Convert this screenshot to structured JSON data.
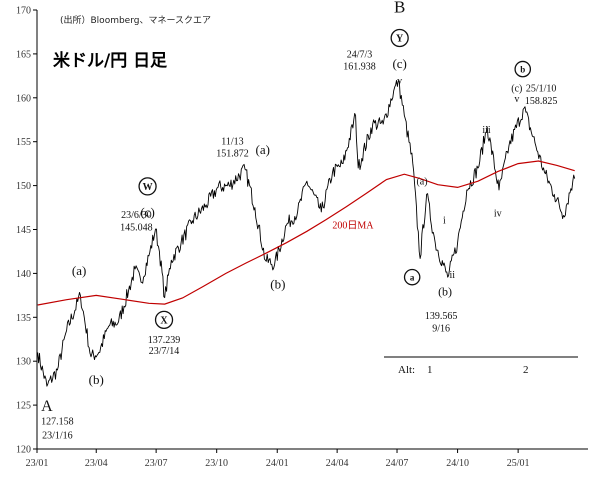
{
  "chart_data": {
    "type": "line",
    "source": "(出所）Bloomberg、マネースクエア",
    "title": "米ドル/円 日足",
    "x_ticks": [
      "23/01",
      "23/04",
      "23/07",
      "23/10",
      "24/01",
      "24/04",
      "24/07",
      "24/10",
      "25/01"
    ],
    "ylim": [
      120,
      170
    ],
    "y_ticks": [
      120,
      125,
      130,
      135,
      140,
      145,
      150,
      155,
      160,
      165,
      170
    ],
    "grid": false,
    "series": [
      {
        "name": "",
        "color": "#000000",
        "points": [
          [
            "2023-01-02",
            131.0
          ],
          [
            "2023-01-16",
            127.158
          ],
          [
            "2023-02-01",
            129.0
          ],
          [
            "2023-02-15",
            133.5
          ],
          [
            "2023-03-08",
            137.5
          ],
          [
            "2023-03-24",
            130.5
          ],
          [
            "2023-04-05",
            131.0
          ],
          [
            "2023-04-20",
            134.0
          ],
          [
            "2023-05-05",
            134.5
          ],
          [
            "2023-05-20",
            138.0
          ],
          [
            "2023-05-30",
            140.5
          ],
          [
            "2023-06-08",
            139.0
          ],
          [
            "2023-06-20",
            142.0
          ],
          [
            "2023-06-30",
            145.048
          ],
          [
            "2023-07-06",
            142.5
          ],
          [
            "2023-07-14",
            137.239
          ],
          [
            "2023-07-24",
            141.5
          ],
          [
            "2023-08-08",
            143.5
          ],
          [
            "2023-08-25",
            146.0
          ],
          [
            "2023-09-15",
            147.8
          ],
          [
            "2023-10-03",
            149.8
          ],
          [
            "2023-10-20",
            150.0
          ],
          [
            "2023-11-13",
            151.872
          ],
          [
            "2023-11-28",
            147.5
          ],
          [
            "2023-12-14",
            141.5
          ],
          [
            "2023-12-28",
            141.0
          ],
          [
            "2024-01-15",
            145.5
          ],
          [
            "2024-02-01",
            147.0
          ],
          [
            "2024-02-15",
            150.5
          ],
          [
            "2024-03-08",
            147.0
          ],
          [
            "2024-03-25",
            151.5
          ],
          [
            "2024-04-10",
            152.5
          ],
          [
            "2024-04-29",
            158.0
          ],
          [
            "2024-05-03",
            152.0
          ],
          [
            "2024-05-25",
            157.0
          ],
          [
            "2024-06-10",
            157.0
          ],
          [
            "2024-06-26",
            160.8
          ],
          [
            "2024-07-03",
            161.938
          ],
          [
            "2024-07-12",
            158.0
          ],
          [
            "2024-07-25",
            152.5
          ],
          [
            "2024-08-05",
            141.7
          ],
          [
            "2024-08-15",
            149.0
          ],
          [
            "2024-08-28",
            143.5
          ],
          [
            "2024-09-16",
            139.565
          ],
          [
            "2024-10-01",
            143.5
          ],
          [
            "2024-10-15",
            149.5
          ],
          [
            "2024-11-01",
            152.0
          ],
          [
            "2024-11-15",
            156.7
          ],
          [
            "2024-12-03",
            149.5
          ],
          [
            "2024-12-18",
            154.5
          ],
          [
            "2025-01-10",
            158.825
          ],
          [
            "2025-01-28",
            154.5
          ],
          [
            "2025-02-10",
            151.5
          ],
          [
            "2025-02-25",
            149.0
          ],
          [
            "2025-03-11",
            146.6
          ],
          [
            "2025-03-25",
            150.5
          ],
          [
            "2025-03-28",
            150.8
          ]
        ]
      },
      {
        "name": "200日MA",
        "color": "#c00000",
        "points": [
          [
            "2023-01-02",
            136.4
          ],
          [
            "2023-02-15",
            137.0
          ],
          [
            "2023-04-01",
            137.5
          ],
          [
            "2023-05-15",
            137.0
          ],
          [
            "2023-06-20",
            136.6
          ],
          [
            "2023-07-14",
            136.5
          ],
          [
            "2023-08-10",
            137.2
          ],
          [
            "2023-09-10",
            138.5
          ],
          [
            "2023-10-15",
            140.0
          ],
          [
            "2023-11-15",
            141.2
          ],
          [
            "2023-12-15",
            142.3
          ],
          [
            "2024-01-15",
            143.5
          ],
          [
            "2024-02-15",
            144.8
          ],
          [
            "2024-03-15",
            146.1
          ],
          [
            "2024-04-15",
            147.6
          ],
          [
            "2024-05-15",
            149.1
          ],
          [
            "2024-06-15",
            150.7
          ],
          [
            "2024-07-12",
            151.3
          ],
          [
            "2024-08-05",
            150.8
          ],
          [
            "2024-09-01",
            150.1
          ],
          [
            "2024-10-01",
            149.8
          ],
          [
            "2024-11-01",
            150.5
          ],
          [
            "2024-12-01",
            151.6
          ],
          [
            "2025-01-01",
            152.5
          ],
          [
            "2025-02-01",
            152.8
          ],
          [
            "2025-03-01",
            152.3
          ],
          [
            "2025-03-28",
            151.7
          ]
        ]
      }
    ],
    "alt_row": {
      "label": "Alt:",
      "labels": [
        "1",
        "2"
      ]
    },
    "annotations": [
      {
        "text": "A",
        "date": "2023-01-16",
        "y": 124.3,
        "size": 16
      },
      {
        "text": "127.158",
        "date": "2023-02-01",
        "y": 122.8,
        "size": 10
      },
      {
        "text": "23/1/16",
        "date": "2023-02-01",
        "y": 121.2,
        "size": 10
      },
      {
        "text": "(a)",
        "date": "2023-03-06",
        "y": 139.8,
        "size": 13
      },
      {
        "text": "(b)",
        "date": "2023-04-01",
        "y": 127.4,
        "size": 13
      },
      {
        "text": "23/6/30",
        "date": "2023-06-01",
        "y": 146.3,
        "size": 10
      },
      {
        "text": "145.048",
        "date": "2023-06-01",
        "y": 144.9,
        "size": 10
      },
      {
        "text": "W",
        "date": "2023-06-18",
        "y": 149.5,
        "size": 10,
        "circle": true
      },
      {
        "text": "(c)",
        "date": "2023-06-18",
        "y": 146.5,
        "size": 13
      },
      {
        "text": "X",
        "date": "2023-07-13",
        "y": 134.3,
        "size": 10,
        "circle": true
      },
      {
        "text": "137.239",
        "date": "2023-07-13",
        "y": 132.1,
        "size": 10
      },
      {
        "text": "23/7/14",
        "date": "2023-07-13",
        "y": 130.8,
        "size": 10
      },
      {
        "text": "11/13",
        "date": "2023-10-25",
        "y": 154.7,
        "size": 10
      },
      {
        "text": "151.872",
        "date": "2023-10-25",
        "y": 153.3,
        "size": 10
      },
      {
        "text": "(a)",
        "date": "2023-12-10",
        "y": 153.6,
        "size": 13
      },
      {
        "text": "(b)",
        "date": "2024-01-02",
        "y": 138.3,
        "size": 13
      },
      {
        "text": "24/7/3",
        "date": "2024-05-05",
        "y": 164.6,
        "size": 10
      },
      {
        "text": "161.938",
        "date": "2024-05-05",
        "y": 163.2,
        "size": 10
      },
      {
        "text": "B",
        "date": "2024-07-05",
        "y": 169.7,
        "size": 17
      },
      {
        "text": "Y",
        "date": "2024-07-05",
        "y": 166.4,
        "size": 10,
        "circle": true
      },
      {
        "text": "(c)",
        "date": "2024-07-05",
        "y": 163.4,
        "size": 13
      },
      {
        "text": "v",
        "date": "2024-07-05",
        "y": 161.6,
        "size": 10
      },
      {
        "text": "200日MA",
        "date": "2024-04-25",
        "y": 145.1,
        "size": 10,
        "red": true
      },
      {
        "text": "(a)",
        "date": "2024-08-08",
        "y": 150.1,
        "size": 10
      },
      {
        "text": "a",
        "date": "2024-07-24",
        "y": 139.2,
        "size": 9,
        "circle": true
      },
      {
        "text": "i",
        "date": "2024-09-11",
        "y": 145.7,
        "size": 10
      },
      {
        "text": "(b)",
        "date": "2024-09-12",
        "y": 137.5,
        "size": 12
      },
      {
        "text": "ii",
        "date": "2024-09-23",
        "y": 139.5,
        "size": 10
      },
      {
        "text": "139.565",
        "date": "2024-09-06",
        "y": 134.8,
        "size": 10
      },
      {
        "text": "9/16",
        "date": "2024-09-06",
        "y": 133.4,
        "size": 10
      },
      {
        "text": "iii",
        "date": "2024-11-14",
        "y": 156.0,
        "size": 10
      },
      {
        "text": "iv",
        "date": "2024-12-01",
        "y": 146.5,
        "size": 10
      },
      {
        "text": "b",
        "date": "2025-01-08",
        "y": 162.9,
        "size": 9,
        "circle": true
      },
      {
        "text": "(c)",
        "date": "2024-12-30",
        "y": 160.7,
        "size": 10
      },
      {
        "text": "v",
        "date": "2024-12-30",
        "y": 159.5,
        "size": 10
      },
      {
        "text": "25/1/10",
        "date": "2025-02-05",
        "y": 160.7,
        "size": 10
      },
      {
        "text": "158.825",
        "date": "2025-02-05",
        "y": 159.3,
        "size": 10
      }
    ]
  }
}
